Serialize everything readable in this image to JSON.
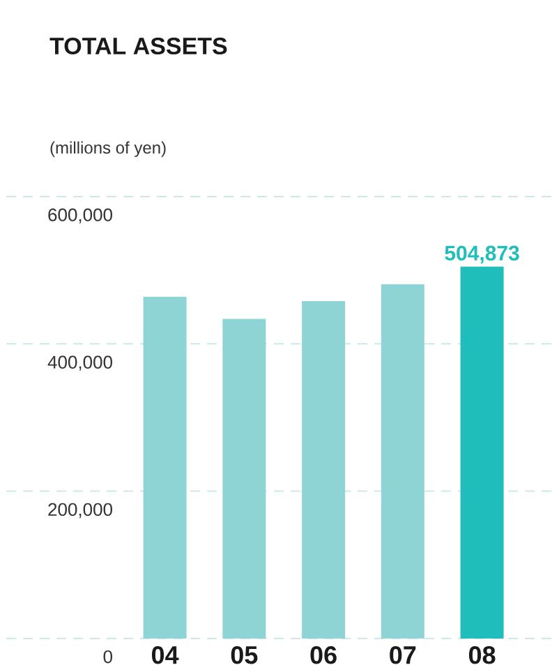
{
  "chart_data": {
    "type": "bar",
    "title": "TOTAL ASSETS",
    "ylabel": "(millions of yen)",
    "categories": [
      "04",
      "05",
      "06",
      "07",
      "08"
    ],
    "values": [
      464000,
      434000,
      458000,
      481000,
      504873
    ],
    "colors": [
      "#8fd4d4",
      "#8fd4d4",
      "#8fd4d4",
      "#8fd4d4",
      "#20bdbd"
    ],
    "value_labels": [
      null,
      null,
      null,
      null,
      "504,873"
    ],
    "ylim": [
      0,
      600000
    ],
    "yticks": [
      {
        "value": 0,
        "label": "0"
      },
      {
        "value": 200000,
        "label": "200,000"
      },
      {
        "value": 400000,
        "label": "400,000"
      },
      {
        "value": 600000,
        "label": "600,000"
      }
    ],
    "grid": "y"
  }
}
